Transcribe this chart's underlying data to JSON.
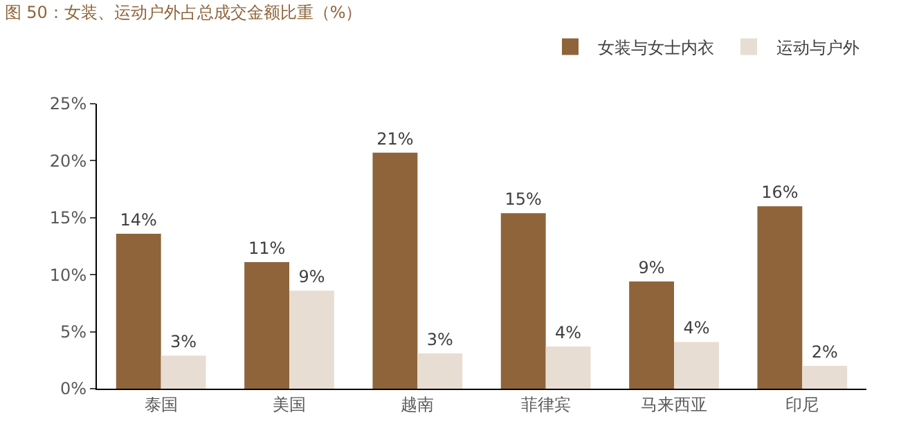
{
  "chart_data": {
    "type": "bar",
    "title": "图 50：女装、运动户外占总成交金额比重（%）",
    "categories": [
      "泰国",
      "美国",
      "越南",
      "菲律宾",
      "马来西亚",
      "印尼"
    ],
    "series": [
      {
        "name": "女装与女士内衣",
        "color": "#8f643b",
        "values": [
          13.6,
          11.1,
          20.7,
          15.4,
          9.4,
          16.0
        ],
        "value_labels": [
          "14%",
          "11%",
          "21%",
          "15%",
          "9%",
          "16%"
        ]
      },
      {
        "name": "运动与户外",
        "color": "#e8ddd2",
        "values": [
          2.9,
          8.6,
          3.1,
          3.7,
          4.1,
          2.0
        ],
        "value_labels": [
          "3%",
          "9%",
          "3%",
          "4%",
          "4%",
          "2%"
        ]
      }
    ],
    "ylim": [
      0,
      25
    ],
    "yticks": [
      {
        "value": 0,
        "label": "0%"
      },
      {
        "value": 5,
        "label": "5%"
      },
      {
        "value": 10,
        "label": "10%"
      },
      {
        "value": 15,
        "label": "15%"
      },
      {
        "value": 20,
        "label": "20%"
      },
      {
        "value": 25,
        "label": "25%"
      }
    ],
    "legend": "top right"
  }
}
